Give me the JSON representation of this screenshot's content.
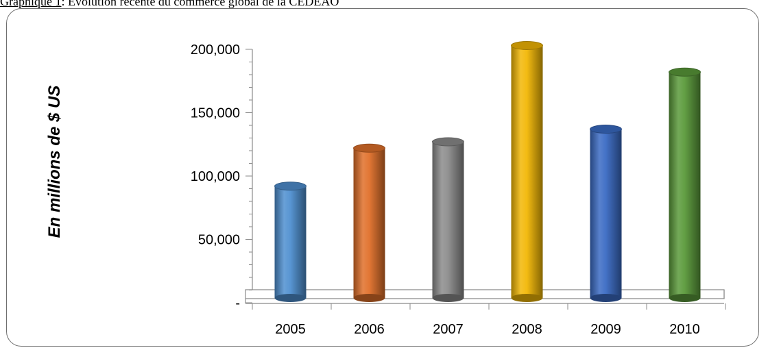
{
  "caption": {
    "lead": "Graphique 1",
    "text": ": Evolution récente du commerce global de la CEDEAO"
  },
  "chart_data": {
    "type": "bar",
    "title": "",
    "ylabel": "En millions de $ US",
    "xlabel": "",
    "categories": [
      "2005",
      "2006",
      "2007",
      "2008",
      "2009",
      "2010"
    ],
    "values": [
      92000,
      122000,
      127000,
      203000,
      137000,
      182000
    ],
    "ylim": [
      0,
      200000
    ],
    "yticks": [
      0,
      50000,
      100000,
      150000,
      200000
    ],
    "ytick_labels": [
      "-",
      "50,000",
      "100,000",
      "150,000",
      "200,000"
    ],
    "bar_colors": [
      "#4f8fd0",
      "#e0702a",
      "#8c8c8c",
      "#f2b705",
      "#3a6bc4",
      "#5a9a3a"
    ],
    "grid": false,
    "legend": "none"
  }
}
